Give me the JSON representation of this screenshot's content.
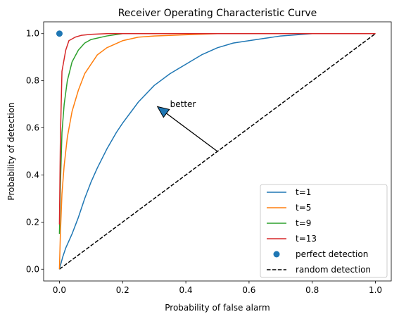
{
  "chart_data": {
    "type": "line",
    "title": "Receiver Operating Characteristic Curve",
    "xlabel": "Probability of false alarm",
    "ylabel": "Probability of detection",
    "xlim": [
      -0.05,
      1.05
    ],
    "ylim": [
      -0.05,
      1.05
    ],
    "x_ticks": [
      0.0,
      0.2,
      0.4,
      0.6,
      0.8,
      1.0
    ],
    "y_ticks": [
      0.0,
      0.2,
      0.4,
      0.6,
      0.8,
      1.0
    ],
    "x_tick_labels": [
      "0.0",
      "0.2",
      "0.4",
      "0.6",
      "0.8",
      "1.0"
    ],
    "y_tick_labels": [
      "0.0",
      "0.2",
      "0.4",
      "0.6",
      "0.8",
      "1.0"
    ],
    "grid": false,
    "legend_position": "lower-right",
    "series": [
      {
        "name": "t=1",
        "color": "#1f77b4",
        "points": [
          [
            0.0,
            0.0
          ],
          [
            0.01,
            0.05
          ],
          [
            0.02,
            0.09
          ],
          [
            0.04,
            0.15
          ],
          [
            0.06,
            0.22
          ],
          [
            0.08,
            0.3
          ],
          [
            0.1,
            0.37
          ],
          [
            0.12,
            0.43
          ],
          [
            0.15,
            0.51
          ],
          [
            0.18,
            0.58
          ],
          [
            0.2,
            0.62
          ],
          [
            0.25,
            0.71
          ],
          [
            0.3,
            0.78
          ],
          [
            0.35,
            0.83
          ],
          [
            0.4,
            0.87
          ],
          [
            0.45,
            0.91
          ],
          [
            0.5,
            0.94
          ],
          [
            0.55,
            0.96
          ],
          [
            0.6,
            0.97
          ],
          [
            0.65,
            0.98
          ],
          [
            0.7,
            0.99
          ],
          [
            0.8,
            1.0
          ],
          [
            1.0,
            1.0
          ]
        ]
      },
      {
        "name": "t=5",
        "color": "#ff7f0e",
        "points": [
          [
            0.0,
            0.0
          ],
          [
            0.003,
            0.15
          ],
          [
            0.008,
            0.32
          ],
          [
            0.015,
            0.44
          ],
          [
            0.025,
            0.56
          ],
          [
            0.04,
            0.67
          ],
          [
            0.06,
            0.76
          ],
          [
            0.08,
            0.83
          ],
          [
            0.1,
            0.87
          ],
          [
            0.12,
            0.91
          ],
          [
            0.15,
            0.94
          ],
          [
            0.2,
            0.97
          ],
          [
            0.25,
            0.985
          ],
          [
            0.3,
            0.99
          ],
          [
            0.4,
            0.995
          ],
          [
            0.5,
            1.0
          ],
          [
            1.0,
            1.0
          ]
        ]
      },
      {
        "name": "t=9",
        "color": "#2ca02c",
        "points": [
          [
            0.0,
            0.15
          ],
          [
            0.003,
            0.35
          ],
          [
            0.008,
            0.58
          ],
          [
            0.015,
            0.7
          ],
          [
            0.025,
            0.8
          ],
          [
            0.04,
            0.88
          ],
          [
            0.06,
            0.93
          ],
          [
            0.08,
            0.96
          ],
          [
            0.1,
            0.975
          ],
          [
            0.15,
            0.99
          ],
          [
            0.2,
            1.0
          ],
          [
            1.0,
            1.0
          ]
        ]
      },
      {
        "name": "t=13",
        "color": "#d62728",
        "points": [
          [
            0.0,
            0.19
          ],
          [
            0.003,
            0.55
          ],
          [
            0.008,
            0.84
          ],
          [
            0.02,
            0.93
          ],
          [
            0.03,
            0.97
          ],
          [
            0.05,
            0.985
          ],
          [
            0.07,
            0.993
          ],
          [
            0.1,
            0.997
          ],
          [
            0.15,
            1.0
          ],
          [
            1.0,
            1.0
          ]
        ]
      }
    ],
    "perfect_point": {
      "name": "perfect detection",
      "x": 0.0,
      "y": 1.0,
      "color": "#1f77b4"
    },
    "random_line": {
      "name": "random detection",
      "color": "#000000",
      "points": [
        [
          0.0,
          0.0
        ],
        [
          1.0,
          1.0
        ]
      ]
    },
    "annotation": {
      "text": "better",
      "xy": [
        0.31,
        0.69
      ],
      "xytext": [
        0.5,
        0.5
      ],
      "text_pos": [
        0.35,
        0.7
      ]
    }
  }
}
